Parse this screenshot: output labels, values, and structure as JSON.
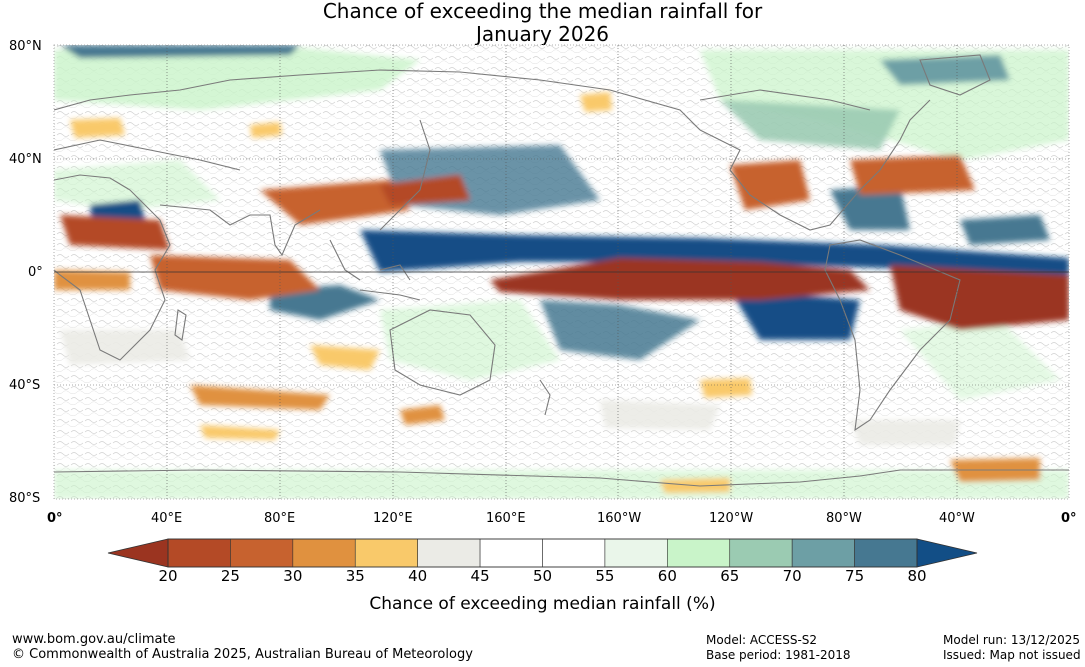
{
  "title": {
    "line1": "Chance of exceeding the median rainfall for",
    "line2": "January 2026"
  },
  "map": {
    "lat_labels": [
      "80°N",
      "40°N",
      "0°",
      "40°S",
      "80°S"
    ],
    "lon_labels": [
      "0°",
      "40°E",
      "80°E",
      "120°E",
      "160°E",
      "160°W",
      "120°W",
      "80°W",
      "40°W",
      "0°"
    ],
    "lat_range": [
      -80,
      80
    ],
    "lon_range": [
      0,
      360
    ]
  },
  "colorbar": {
    "ticks": [
      "20",
      "25",
      "30",
      "35",
      "40",
      "45",
      "50",
      "55",
      "60",
      "65",
      "70",
      "75",
      "80"
    ],
    "label": "Chance of exceeding median rainfall (%)",
    "low_extend_color": "#9b3420",
    "high_extend_color": "#124e86",
    "colors": [
      "#b44a26",
      "#c7622f",
      "#e0913f",
      "#f9c96a",
      "#ebebe6",
      "#ffffff",
      "#ffffff",
      "#eaf6ea",
      "#c9f4c9",
      "#9bcbb2",
      "#6d9fa5",
      "#467891"
    ]
  },
  "footer": {
    "website": "www.bom.gov.au/climate",
    "copyright": "© Commonwealth of Australia 2025, Australian Bureau of Meteorology",
    "model": "Model: ACCESS-S2",
    "base_period": "Base period: 1981-2018",
    "model_run": "Model run: 13/12/2025",
    "issued": "Issued: Map not issued"
  }
}
